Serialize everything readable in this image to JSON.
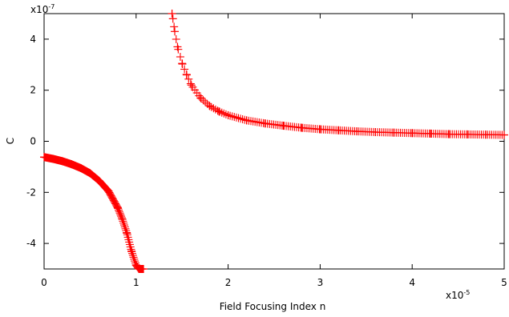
{
  "chart_data": {
    "type": "scatter",
    "title": "",
    "xlabel": "Field Focusing Index n",
    "ylabel": "C",
    "x_multiplier_label": "x10",
    "x_multiplier_exp": "-5",
    "y_multiplier_label": "x10",
    "y_multiplier_exp": "-7",
    "xlim": [
      0,
      5
    ],
    "ylim": [
      -5,
      5
    ],
    "x_ticks": [
      0,
      1,
      2,
      3,
      4,
      5
    ],
    "y_ticks": [
      -4,
      -2,
      0,
      2,
      4
    ],
    "grid": false,
    "legend": "none",
    "marker": "plus",
    "series_color": "#ff0000",
    "model_note_unused": "",
    "series": [
      {
        "x": [
          0.0,
          0.1,
          0.2,
          0.3,
          0.4,
          0.5,
          0.6,
          0.7,
          0.8,
          0.85,
          0.9,
          0.95,
          1.0,
          1.03,
          1.06,
          1.08
        ],
        "y": [
          -0.62,
          -0.69,
          -0.78,
          -0.9,
          -1.05,
          -1.25,
          -1.55,
          -1.95,
          -2.6,
          -3.05,
          -3.6,
          -4.3,
          -4.85,
          -5.0,
          -5.0,
          -5.0
        ]
      },
      {
        "x": [
          1.39,
          1.4,
          1.42,
          1.45,
          1.5,
          1.55,
          1.6,
          1.7,
          1.8,
          1.9,
          2.0,
          2.2,
          2.4,
          2.6,
          2.8,
          3.0,
          3.2,
          3.4,
          3.6,
          3.8,
          4.0,
          4.2,
          4.4,
          4.6,
          4.8,
          5.0
        ],
        "y": [
          5.0,
          4.8,
          4.3,
          3.7,
          3.05,
          2.6,
          2.2,
          1.7,
          1.38,
          1.17,
          1.02,
          0.82,
          0.7,
          0.61,
          0.53,
          0.47,
          0.43,
          0.39,
          0.36,
          0.34,
          0.32,
          0.3,
          0.28,
          0.27,
          0.26,
          0.25
        ]
      }
    ]
  }
}
